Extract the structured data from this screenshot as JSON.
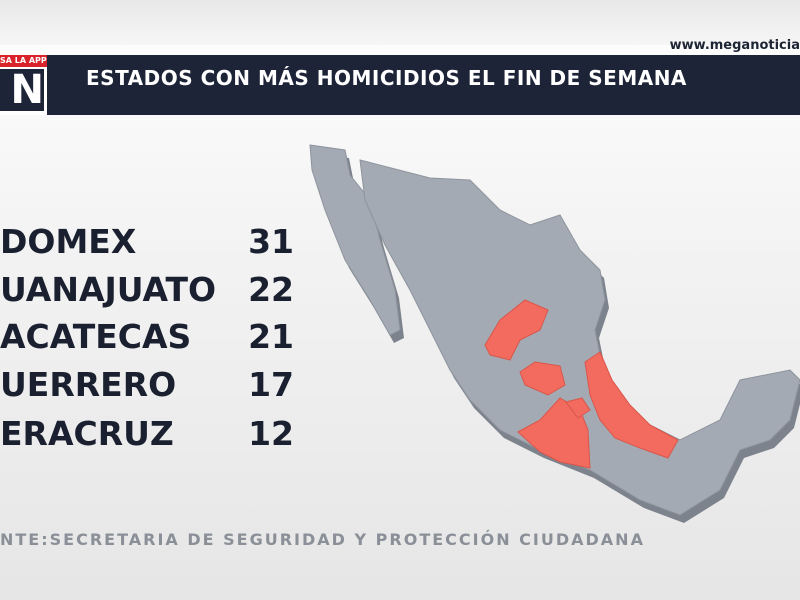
{
  "header": {
    "app_banner": "SA LA APP",
    "logo": "N",
    "website": "www.meganoticia",
    "title": "ESTADOS CON MÁS HOMICIDIOS EL FIN DE SEMANA"
  },
  "table": {
    "rows": [
      [
        "DOMEX",
        "31"
      ],
      [
        "UANAJUATO",
        "22"
      ],
      [
        "ACATECAS",
        "21"
      ],
      [
        "UERRERO",
        "17"
      ],
      [
        "ERACRUZ",
        "12"
      ]
    ]
  },
  "footer": {
    "source": "NTE:SECRETARIA DE SEGURIDAD Y PROTECCIÓN CIUDADANA"
  }
}
